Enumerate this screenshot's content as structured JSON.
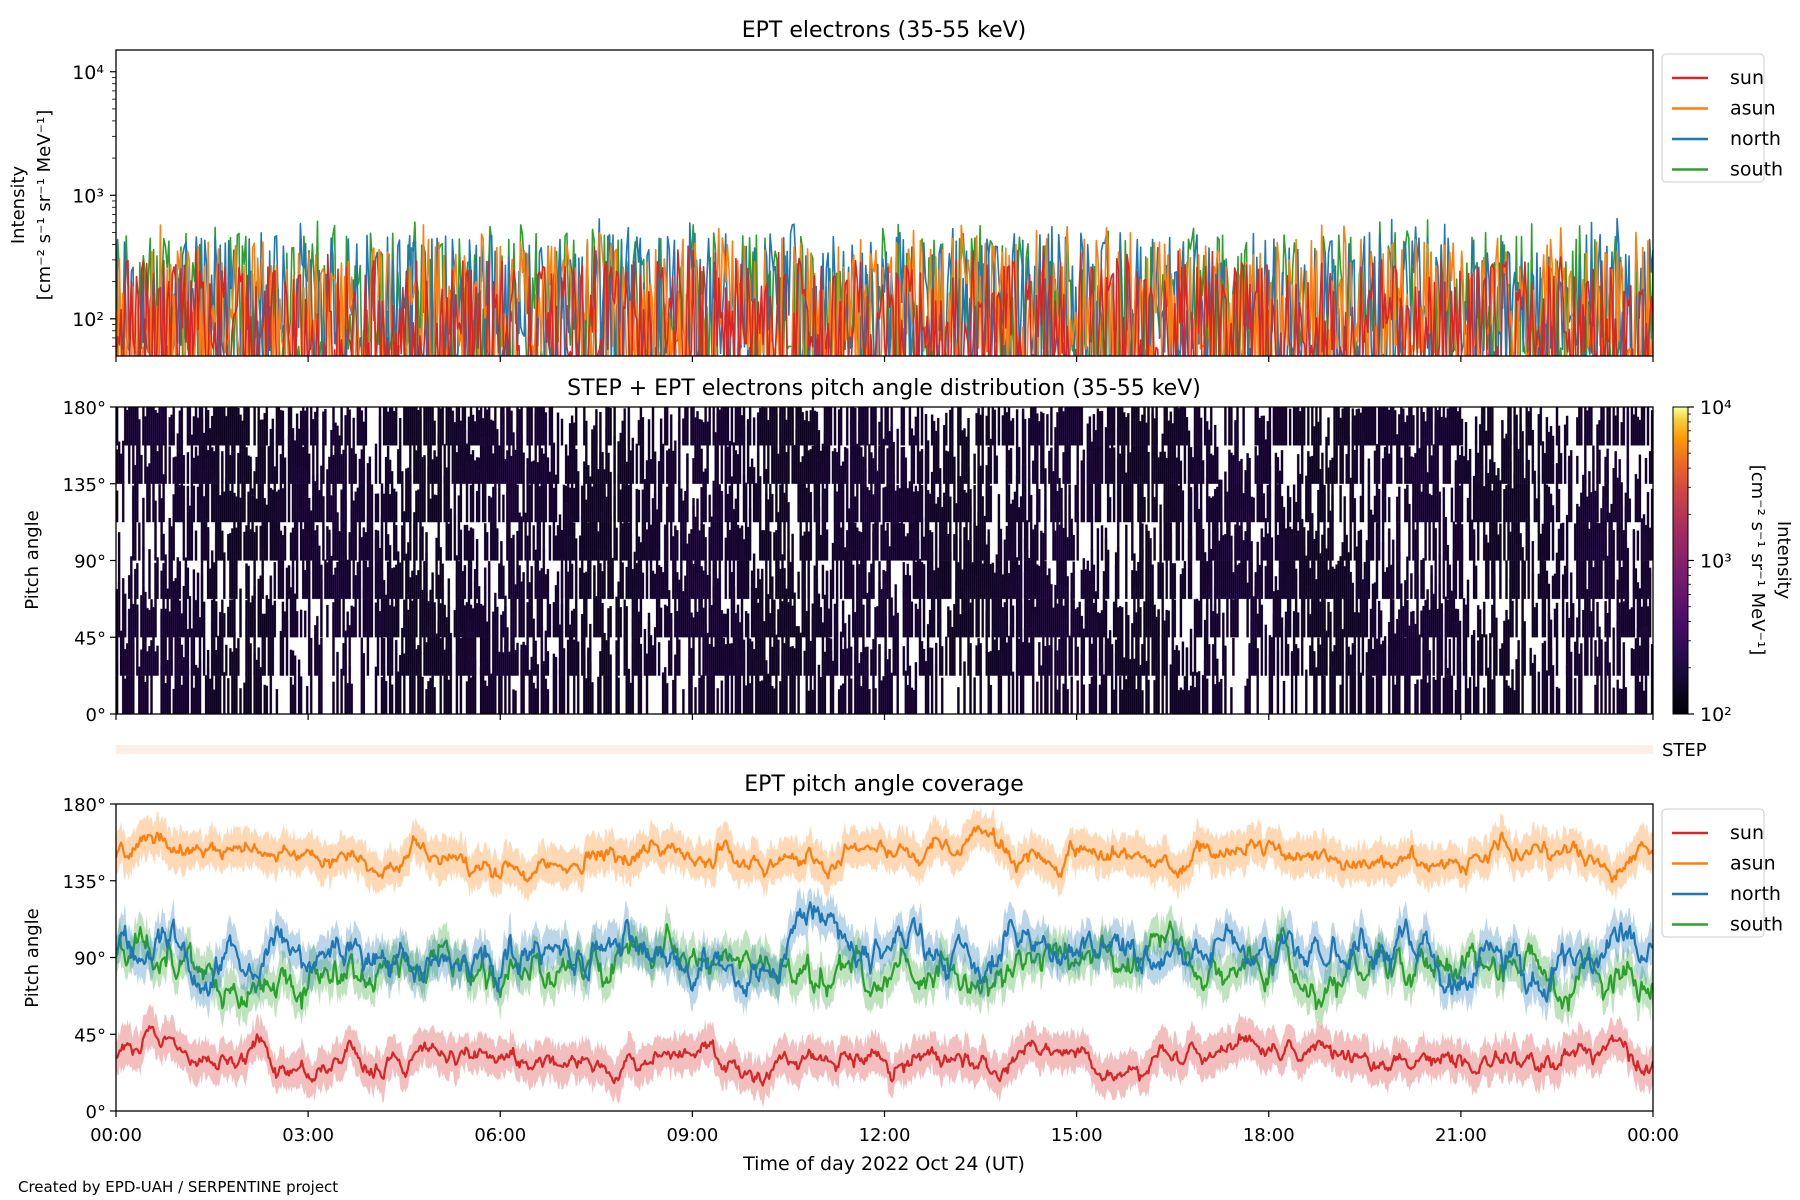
{
  "credit": "Created by EPD-UAH / SERPENTINE project",
  "colors": {
    "sun": "#d62728",
    "asun": "#ff7f0e",
    "north": "#1f77b4",
    "south": "#2ca02c",
    "heatmap_dark": "#0d0221",
    "step_band": "#fdeee6"
  },
  "x_ticks": [
    "00:00",
    "03:00",
    "06:00",
    "09:00",
    "12:00",
    "15:00",
    "18:00",
    "21:00",
    "00:00"
  ],
  "xlabel": "Time of day 2022 Oct 24 (UT)",
  "chart_data": [
    {
      "type": "line",
      "title": "EPT electrons (35-55 keV)",
      "ylabel_line1": "Intensity",
      "ylabel_line2": "[cm⁻² s⁻¹ sr⁻¹ MeV⁻¹]",
      "yscale": "log",
      "ylim": [
        50,
        15000
      ],
      "y_ticks": [
        100,
        1000,
        10000
      ],
      "y_tick_labels": [
        "10²",
        "10³",
        "10⁴"
      ],
      "xlim_hours": [
        0,
        24
      ],
      "legend_placement": "outside-right",
      "series": [
        {
          "name": "sun",
          "typical_range": [
            50,
            300
          ]
        },
        {
          "name": "asun",
          "typical_range": [
            60,
            450
          ]
        },
        {
          "name": "north",
          "typical_range": [
            60,
            500
          ]
        },
        {
          "name": "south",
          "typical_range": [
            60,
            500
          ]
        }
      ]
    },
    {
      "type": "heatmap",
      "title": "STEP + EPT electrons pitch angle distribution (35-55 keV)",
      "ylabel": "Pitch angle",
      "ylim": [
        0,
        180
      ],
      "y_tick_labels": [
        "0°",
        "45°",
        "90°",
        "135°",
        "180°"
      ],
      "colorbar": {
        "scale": "log",
        "range": [
          100,
          10000
        ],
        "tick_labels": [
          "10²",
          "10³",
          "10⁴"
        ],
        "label_line1": "Intensity",
        "label_line2": "[cm⁻² s⁻¹ sr⁻¹ MeV⁻¹]"
      },
      "step_label": "STEP"
    },
    {
      "type": "line",
      "title": "EPT pitch angle coverage",
      "ylabel": "Pitch angle",
      "ylim": [
        0,
        180
      ],
      "y_tick_labels": [
        "0°",
        "45°",
        "90°",
        "135°",
        "180°"
      ],
      "legend_placement": "outside-right",
      "series": [
        {
          "name": "sun",
          "mean_deg": 30,
          "spread_deg": 12
        },
        {
          "name": "asun",
          "mean_deg": 150,
          "spread_deg": 12
        },
        {
          "name": "north",
          "mean_deg": 90,
          "spread_deg": 22
        },
        {
          "name": "south",
          "mean_deg": 85,
          "spread_deg": 22
        }
      ]
    }
  ]
}
